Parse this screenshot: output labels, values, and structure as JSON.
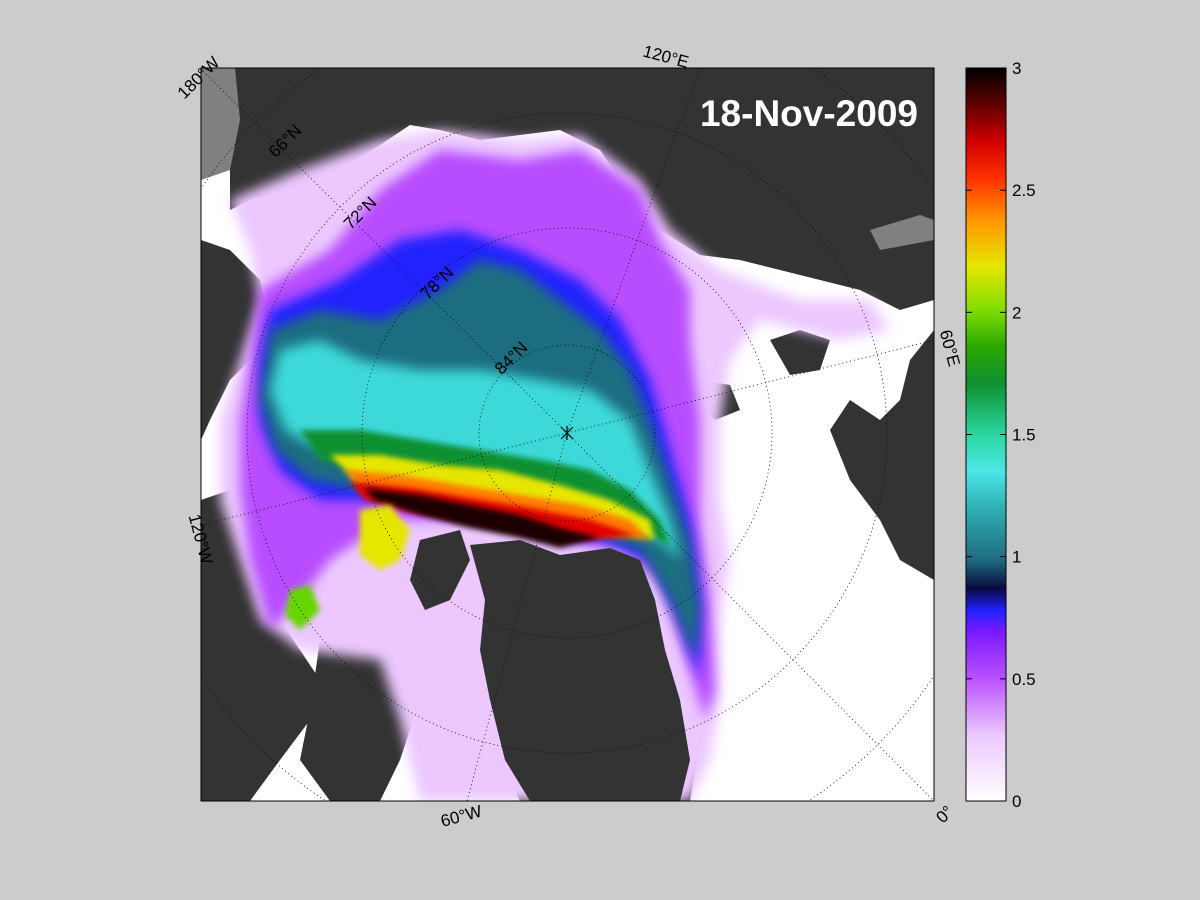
{
  "date_label": "18-Nov-2009",
  "longitude_labels": [
    "180°W",
    "120°E",
    "60°E",
    "0°",
    "60°W",
    "120°W"
  ],
  "latitude_labels": [
    "66°N",
    "72°N",
    "78°N",
    "84°N"
  ],
  "colorbar": {
    "min": 0,
    "max": 3,
    "tick_labels": [
      "0",
      "0.5",
      "1",
      "1.5",
      "2",
      "2.5",
      "3"
    ],
    "colors": {
      "0": "#ffffff",
      "0.25": "#e6b3ff",
      "0.5": "#b34dff",
      "0.75": "#2020ff",
      "0.85": "#0a0a55",
      "1": "#1f6d80",
      "1.25": "#3dd9d9",
      "1.5": "#2ad6a0",
      "1.75": "#109030",
      "2": "#66d600",
      "2.25": "#e6e600",
      "2.5": "#ff7a00",
      "2.75": "#e00000",
      "3": "#000000"
    }
  },
  "map_colors": {
    "land": "#333333",
    "ocean_no_ice": "#ffffff",
    "land_ice_edge": "#808080",
    "background": "#cccccc"
  }
}
